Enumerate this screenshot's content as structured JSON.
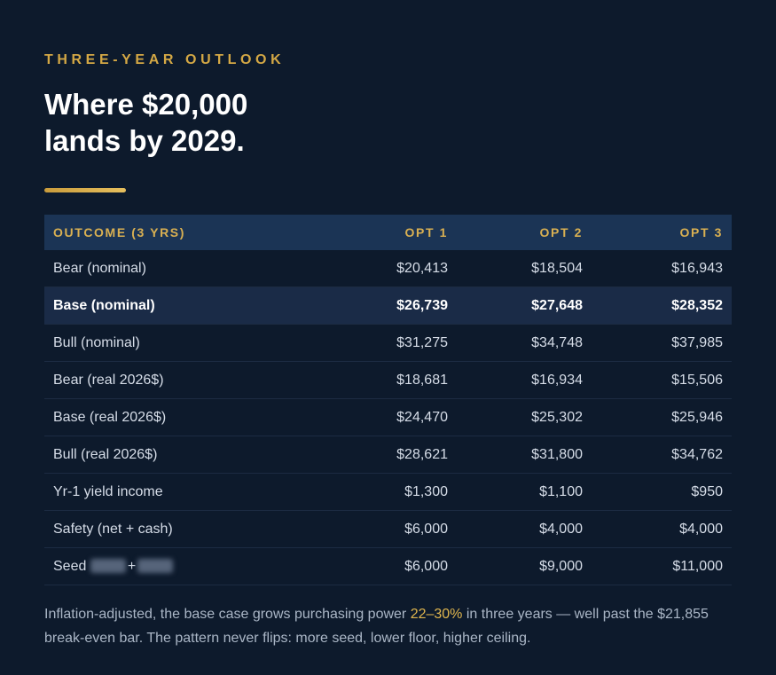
{
  "header": {
    "eyebrow": "THREE-YEAR OUTLOOK",
    "title_line1": "Where $20,000",
    "title_line2": "lands by 2029."
  },
  "table": {
    "columns": [
      "OUTCOME (3 YRS)",
      "OPT 1",
      "OPT 2",
      "OPT 3"
    ],
    "rows": [
      {
        "label": "Bear (nominal)",
        "values": [
          "$20,413",
          "$18,504",
          "$16,943"
        ],
        "highlight": false
      },
      {
        "label": "Base (nominal)",
        "values": [
          "$26,739",
          "$27,648",
          "$28,352"
        ],
        "highlight": true
      },
      {
        "label": "Bull (nominal)",
        "values": [
          "$31,275",
          "$34,748",
          "$37,985"
        ],
        "highlight": false
      },
      {
        "label": "Bear (real 2026$)",
        "values": [
          "$18,681",
          "$16,934",
          "$15,506"
        ],
        "highlight": false
      },
      {
        "label": "Base (real 2026$)",
        "values": [
          "$24,470",
          "$25,302",
          "$25,946"
        ],
        "highlight": false
      },
      {
        "label": "Bull (real 2026$)",
        "values": [
          "$28,621",
          "$31,800",
          "$34,762"
        ],
        "highlight": false
      },
      {
        "label": "Yr-1 yield income",
        "values": [
          "$1,300",
          "$1,100",
          "$950"
        ],
        "highlight": false
      },
      {
        "label": "Safety (net + cash)",
        "values": [
          "$6,000",
          "$4,000",
          "$4,000"
        ],
        "highlight": false
      },
      {
        "label": "Seed",
        "label_suffix": "+",
        "values": [
          "$6,000",
          "$9,000",
          "$11,000"
        ],
        "highlight": false
      }
    ]
  },
  "note": {
    "before": "Inflation-adjusted, the base case grows purchasing power ",
    "accent": "22–30%",
    "after": " in three years — well past the $21,855 break-even bar. The pattern never flips: more seed, lower floor, higher ceiling."
  }
}
